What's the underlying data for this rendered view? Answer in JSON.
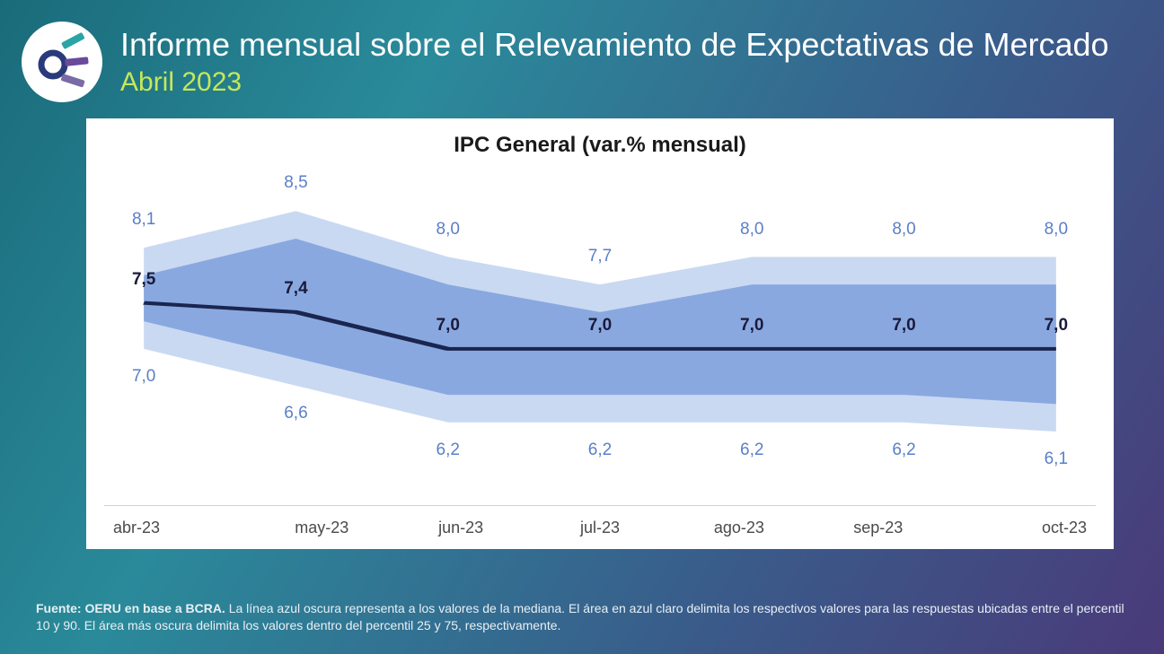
{
  "header": {
    "title": "Informe mensual sobre el Relevamiento de Expectativas de Mercado",
    "subtitle": "Abril 2023"
  },
  "chart": {
    "type": "line-with-bands",
    "title": "IPC General (var.% mensual)",
    "categories": [
      "abr-23",
      "may-23",
      "jun-23",
      "jul-23",
      "ago-23",
      "sep-23",
      "oct-23"
    ],
    "median": [
      7.5,
      7.4,
      7.0,
      7.0,
      7.0,
      7.0,
      7.0
    ],
    "p25": [
      7.0,
      6.6,
      6.2,
      6.2,
      6.2,
      6.2,
      6.1
    ],
    "p75": [
      8.1,
      8.5,
      8.0,
      7.7,
      8.0,
      8.0,
      8.0
    ],
    "p10": [
      7.0,
      6.6,
      6.2,
      6.2,
      6.2,
      6.2,
      6.1
    ],
    "p90": [
      8.1,
      8.5,
      8.0,
      7.7,
      8.0,
      8.0,
      8.0
    ],
    "ylim": [
      5.3,
      9.0
    ],
    "colors": {
      "background": "#ffffff",
      "outer_band": "#c9d9f2",
      "inner_band": "#8aa8e0",
      "median_line": "#1a2550",
      "median_label": "#1a1a3a",
      "band_label": "#5a7fc7",
      "x_tick": "#4a4a4a",
      "axis_line": "#d0d0d0"
    },
    "median_line_width": 4,
    "label_fontsize_median": 19,
    "label_fontsize_band": 19,
    "title_fontsize": 24,
    "inner_band_vpad": 0.3,
    "label_offsets": {
      "median_above": 0.25,
      "upper_above": 0.3,
      "lower_below": 0.3
    }
  },
  "footer": {
    "source_label": "Fuente",
    "source_value": "OERU en base a BCRA.",
    "note": "La línea azul oscura representa a los valores de la mediana. El área en azul claro delimita los respectivos valores para las respuestas ubicadas entre el percentil 10 y 90. El área más oscura delimita los valores dentro del percentil 25 y 75, respectivamente."
  },
  "logo": {
    "ring_color": "#2a3a7a",
    "bar_colors": [
      "#2aa5a5",
      "#6a4a9a",
      "#7a6aa5"
    ]
  }
}
